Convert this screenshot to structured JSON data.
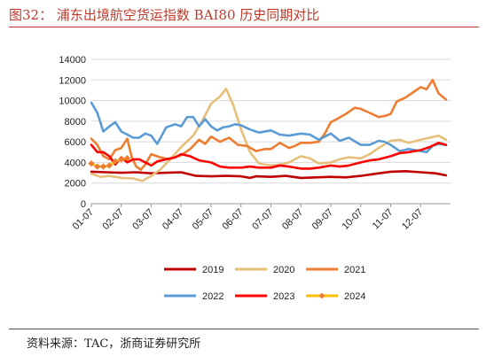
{
  "header": {
    "title": "图32：  浦东出境航空货运指数 BAI80 历史同期对比"
  },
  "footer": {
    "source": "资料来源：TAC，浙商证券研究所"
  },
  "colors": {
    "title": "#c0392b",
    "grid": "#d9d9d9"
  },
  "chart_data": {
    "type": "line",
    "title": "",
    "xlabel": "",
    "ylabel": "",
    "ylim": [
      0,
      14000
    ],
    "yticks": [
      0,
      2000,
      4000,
      6000,
      8000,
      10000,
      12000,
      14000
    ],
    "ytick_labels": [
      "0",
      "2000",
      "4000",
      "6000",
      "8000",
      "10000",
      "12000",
      "14000"
    ],
    "xlim": [
      1,
      13
    ],
    "xticks": [
      1,
      2,
      3,
      4,
      5,
      6,
      7,
      8,
      9,
      10,
      11,
      12
    ],
    "xtick_labels": [
      "01-07",
      "02-07",
      "03-07",
      "04-07",
      "05-07",
      "06-07",
      "07-07",
      "08-07",
      "09-07",
      "10-07",
      "11-07",
      "12-07"
    ],
    "grid": "horizontal",
    "legend_position": "bottom",
    "series": [
      {
        "name": "2019",
        "color": "#c00000",
        "marker": "none",
        "x": [
          1.0,
          1.5,
          2.0,
          2.5,
          3.0,
          3.5,
          4.0,
          4.5,
          5.0,
          5.5,
          6.0,
          6.3,
          6.5,
          7.0,
          7.5,
          8.0,
          8.5,
          9.0,
          9.5,
          10.0,
          10.5,
          11.0,
          11.5,
          12.0,
          12.5,
          12.85
        ],
        "values": [
          3100,
          3050,
          3000,
          3050,
          2950,
          3000,
          3050,
          2700,
          2650,
          2700,
          2650,
          2500,
          2650,
          2600,
          2700,
          2500,
          2550,
          2600,
          2550,
          2700,
          2900,
          3100,
          3150,
          3050,
          2950,
          2750
        ]
      },
      {
        "name": "2020",
        "color": "#e6c07b",
        "marker": "none",
        "x": [
          1.0,
          1.3,
          1.6,
          2.0,
          2.4,
          2.7,
          3.0,
          3.3,
          3.6,
          4.0,
          4.4,
          4.7,
          5.0,
          5.3,
          5.5,
          5.75,
          6.0,
          6.3,
          6.6,
          7.0,
          7.3,
          7.6,
          8.0,
          8.3,
          8.6,
          9.0,
          9.3,
          9.6,
          10.0,
          10.3,
          10.6,
          11.0,
          11.3,
          11.6,
          12.0,
          12.3,
          12.6,
          12.85
        ],
        "values": [
          2900,
          2600,
          2700,
          2500,
          2450,
          2200,
          2700,
          3300,
          4200,
          5500,
          6600,
          8000,
          9700,
          10400,
          11150,
          9500,
          7200,
          5000,
          3900,
          3700,
          3800,
          4000,
          4600,
          4400,
          3900,
          4000,
          4300,
          4500,
          4400,
          4800,
          5400,
          6100,
          6200,
          5900,
          6200,
          6400,
          6600,
          6200
        ]
      },
      {
        "name": "2021",
        "color": "#ed7d31",
        "marker": "none",
        "x": [
          1.0,
          1.2,
          1.4,
          1.6,
          1.8,
          2.0,
          2.2,
          2.35,
          2.5,
          2.65,
          2.8,
          3.0,
          3.3,
          3.6,
          4.0,
          4.3,
          4.6,
          4.8,
          5.0,
          5.3,
          5.6,
          5.9,
          6.2,
          6.5,
          6.8,
          7.0,
          7.3,
          7.6,
          7.8,
          8.0,
          8.3,
          8.6,
          8.8,
          9.0,
          9.2,
          9.5,
          9.8,
          10.0,
          10.3,
          10.6,
          10.8,
          11.0,
          11.2,
          11.5,
          11.8,
          12.0,
          12.2,
          12.4,
          12.6,
          12.85
        ],
        "values": [
          6300,
          5700,
          4600,
          4300,
          5200,
          5400,
          6300,
          4500,
          3600,
          3300,
          3800,
          4800,
          4500,
          4300,
          4700,
          5300,
          6200,
          5800,
          6500,
          6000,
          6400,
          5700,
          5600,
          5100,
          5300,
          5300,
          5900,
          5400,
          5600,
          5900,
          5900,
          6000,
          6800,
          7900,
          8200,
          8700,
          9300,
          9200,
          8800,
          8400,
          8500,
          8700,
          9900,
          10300,
          10900,
          11300,
          11100,
          12000,
          10700,
          10100
        ]
      },
      {
        "name": "2022",
        "color": "#5b9bd5",
        "marker": "none",
        "x": [
          1.0,
          1.2,
          1.4,
          1.6,
          1.8,
          2.0,
          2.2,
          2.4,
          2.6,
          2.8,
          3.0,
          3.2,
          3.5,
          3.8,
          4.0,
          4.2,
          4.4,
          4.6,
          4.8,
          5.0,
          5.2,
          5.4,
          5.6,
          5.8,
          6.0,
          6.3,
          6.6,
          7.0,
          7.3,
          7.6,
          8.0,
          8.3,
          8.6,
          9.0,
          9.3,
          9.6,
          10.0,
          10.3,
          10.6,
          10.8,
          11.0,
          11.3,
          11.6,
          12.0,
          12.2,
          12.4,
          12.6,
          12.85
        ],
        "values": [
          9800,
          8800,
          7000,
          7500,
          7900,
          7000,
          6700,
          6400,
          6400,
          6800,
          6600,
          5800,
          7400,
          7700,
          7500,
          8400,
          8400,
          7500,
          8200,
          7500,
          7100,
          7400,
          7500,
          7700,
          7600,
          7200,
          6900,
          7100,
          6700,
          6600,
          6800,
          6700,
          6200,
          6800,
          6100,
          6400,
          5700,
          5700,
          6100,
          6000,
          5700,
          5100,
          5300,
          5100,
          5000,
          5600,
          5800,
          5700
        ]
      },
      {
        "name": "2023",
        "color": "#ff0000",
        "marker": "none",
        "x": [
          1.0,
          1.2,
          1.4,
          1.6,
          1.8,
          2.0,
          2.2,
          2.4,
          2.6,
          2.8,
          3.0,
          3.2,
          3.5,
          3.8,
          4.0,
          4.3,
          4.6,
          5.0,
          5.3,
          5.6,
          6.0,
          6.3,
          6.6,
          7.0,
          7.3,
          7.6,
          8.0,
          8.3,
          8.6,
          9.0,
          9.3,
          9.6,
          10.0,
          10.3,
          10.6,
          11.0,
          11.3,
          11.6,
          12.0,
          12.3,
          12.6,
          12.85
        ],
        "values": [
          5700,
          5000,
          5000,
          4600,
          3800,
          4500,
          4000,
          4300,
          4300,
          4000,
          3700,
          4100,
          4300,
          4500,
          4800,
          4600,
          4200,
          4000,
          3600,
          3500,
          3500,
          3600,
          3500,
          3500,
          3700,
          3600,
          3400,
          3400,
          3500,
          3700,
          3600,
          3700,
          4000,
          4200,
          4300,
          4600,
          4900,
          5000,
          5200,
          5500,
          5900,
          5700
        ]
      },
      {
        "name": "2024",
        "color": "#ffc000",
        "marker": "diamond",
        "marker_color": "#ed7d31",
        "x": [
          1.0,
          1.2,
          1.4,
          1.6,
          1.8,
          2.0,
          2.2
        ],
        "values": [
          3900,
          3600,
          3600,
          3700,
          4100,
          4300,
          4400
        ]
      }
    ]
  }
}
